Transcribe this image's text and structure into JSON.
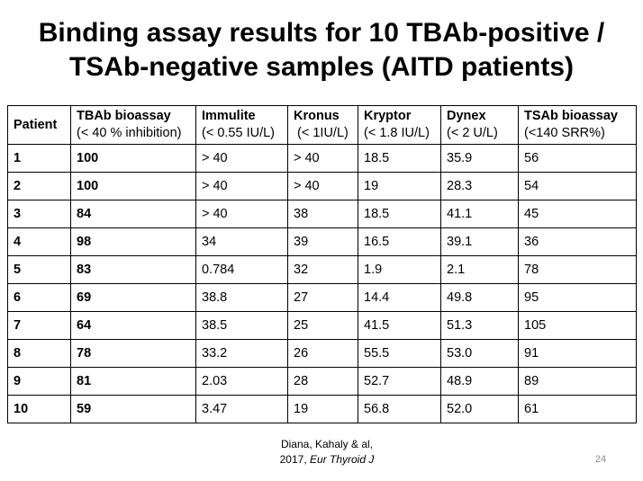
{
  "title": {
    "line1": "Binding assay results for 10 TBAb-positive /",
    "line2": "TSAb-negative samples (AITD patients)"
  },
  "table": {
    "headers": [
      {
        "name": "Patient",
        "sub": ""
      },
      {
        "name": "TBAb bioassay",
        "sub": "(< 40 % inhibition)"
      },
      {
        "name": "Immulite",
        "sub": "(< 0.55 IU/L)"
      },
      {
        "name": "Kronus",
        "sub": " (< 1IU/L)"
      },
      {
        "name": "Kryptor",
        "sub": "(< 1.8 IU/L)"
      },
      {
        "name": "Dynex",
        "sub": "(< 2 U/L)"
      },
      {
        "name": "TSAb bioassay",
        "sub": "(<140 SRR%)"
      }
    ],
    "rows": [
      [
        "1",
        "100",
        "> 40",
        "> 40",
        "18.5",
        "35.9",
        "56"
      ],
      [
        "2",
        "100",
        "> 40",
        "> 40",
        "19",
        "28.3",
        "54"
      ],
      [
        "3",
        "84",
        "> 40",
        "38",
        "18.5",
        "41.1",
        "45"
      ],
      [
        "4",
        "98",
        "34",
        "39",
        "16.5",
        "39.1",
        "36"
      ],
      [
        "5",
        "83",
        "0.784",
        "32",
        "1.9",
        "2.1",
        "78"
      ],
      [
        "6",
        "69",
        "38.8",
        "27",
        "14.4",
        "49.8",
        "95"
      ],
      [
        "7",
        "64",
        "38.5",
        "25",
        "41.5",
        "51.3",
        "105"
      ],
      [
        "8",
        "78",
        "33.2",
        "26",
        "55.5",
        "53.0",
        "91"
      ],
      [
        "9",
        "81",
        "2.03",
        "28",
        "52.7",
        "48.9",
        "89"
      ],
      [
        "10",
        "59",
        "3.47",
        "19",
        "56.8",
        "52.0",
        "61"
      ]
    ]
  },
  "citation": {
    "line1": "Diana, Kahaly & al,",
    "year": "2017, ",
    "journal": "Eur Thyroid J"
  },
  "page_number": "24"
}
